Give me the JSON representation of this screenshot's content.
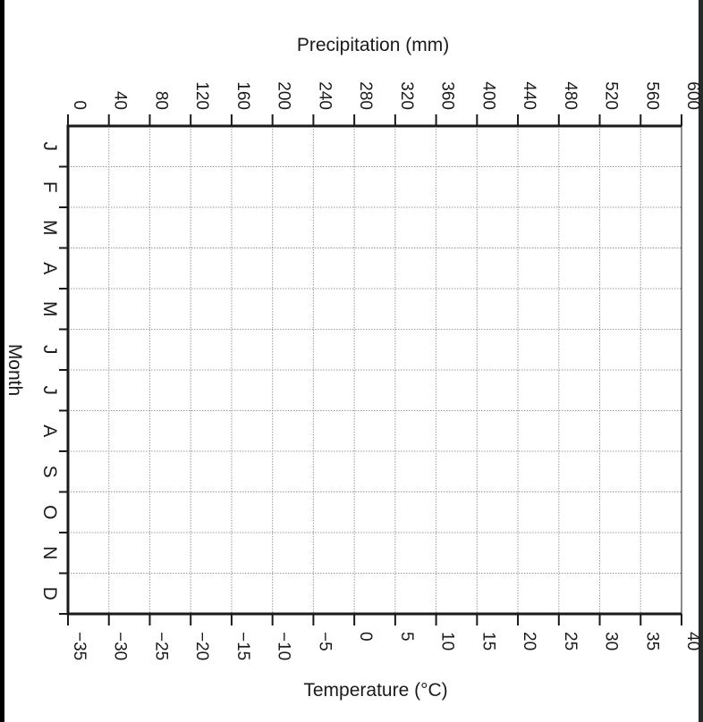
{
  "chart_data": {
    "type": "line",
    "title": "",
    "top_axis": {
      "label": "Precipitation (mm)",
      "ticks": [
        "0",
        "40",
        "80",
        "120",
        "160",
        "200",
        "240",
        "280",
        "320",
        "360",
        "400",
        "440",
        "480",
        "520",
        "560",
        "600"
      ],
      "range": [
        0,
        600
      ]
    },
    "bottom_axis": {
      "label": "Temperature (°C)",
      "ticks": [
        "−35",
        "−30",
        "−25",
        "−20",
        "−15",
        "−10",
        "−5",
        "0",
        "5",
        "10",
        "15",
        "20",
        "25",
        "30",
        "35",
        "40"
      ],
      "range": [
        -35,
        40
      ]
    },
    "month_axis": {
      "label": "Month",
      "categories": [
        "J",
        "F",
        "M",
        "A",
        "M",
        "J",
        "J",
        "A",
        "S",
        "O",
        "N",
        "D"
      ]
    },
    "grid": true,
    "series": []
  },
  "colors": {
    "axis": "#1a1a1a",
    "grid": "#9a9a9a",
    "background": "#ffffff"
  }
}
